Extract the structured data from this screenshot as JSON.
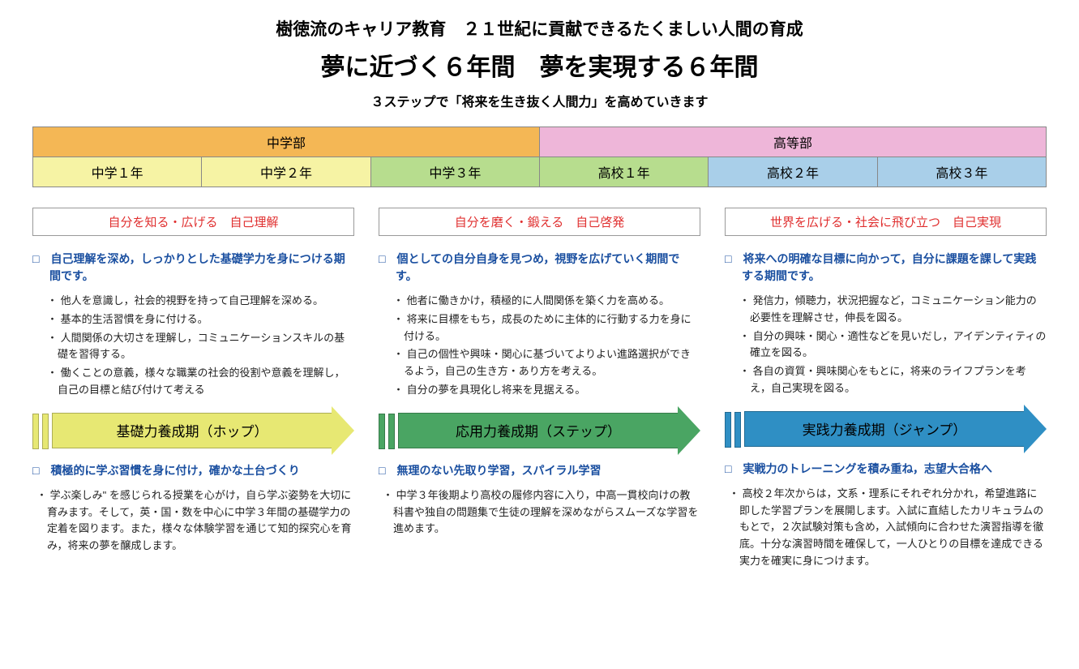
{
  "header": {
    "line1": "樹徳流のキャリア教育　２１世紀に貢献できるたくましい人間の育成",
    "line2": "夢に近づく６年間　夢を実現する６年間",
    "line3": "３ステップで「将来を生き抜く人間力」を高めていきます"
  },
  "table": {
    "divisions": [
      {
        "label": "中学部",
        "bg": "#f4b755"
      },
      {
        "label": "高等部",
        "bg": "#eeb6d9"
      }
    ],
    "years": [
      {
        "label": "中学１年",
        "bg": "#f6f3a4"
      },
      {
        "label": "中学２年",
        "bg": "#f6f3a4"
      },
      {
        "label": "中学３年",
        "bg": "#b7dd8e"
      },
      {
        "label": "高校１年",
        "bg": "#b7dd8e"
      },
      {
        "label": "高校２年",
        "bg": "#a9cfe9"
      },
      {
        "label": "高校３年",
        "bg": "#a9cfe9"
      }
    ]
  },
  "columns": [
    {
      "stage": "自分を知る・広げる　自己理解",
      "intro": "自己理解を深め，しっかりとした基礎学力を身につける期間です。",
      "bullets": [
        "他人を意識し，社会的視野を持って自己理解を深める。",
        "基本的生活習慣を身に付ける。",
        "人間関係の大切さを理解し，コミュニケーションスキルの基礎を習得する。",
        "働くことの意義，様々な職業の社会的役割や意義を理解し，自己の目標と結び付けて考える"
      ],
      "arrow_label": "基礎力養成期（ホップ）",
      "arrow_color": "#e7e873",
      "sub_title": "積極的に学ぶ習慣を身に付け，確かな土台づくり",
      "sub_body": "学ぶ楽しみ\" を感じられる授業を心がけ，自ら学ぶ姿勢を大切に育みます。そして，英・国・数を中心に中学３年間の基礎学力の定着を図ります。また，様々な体験学習を通じて知的探究心を育み，将来の夢を醸成します。"
    },
    {
      "stage": "自分を磨く・鍛える　自己啓発",
      "intro": "個としての自分自身を見つめ，視野を広げていく期間です。",
      "bullets": [
        "他者に働きかけ，積極的に人間関係を築く力を高める。",
        "将来に目標をもち，成長のために主体的に行動する力を身に付ける。",
        "自己の個性や興味・関心に基づいてよりよい進路選択ができるよう，自己の生き方・あり方を考える。",
        "自分の夢を具現化し将来を見据える。"
      ],
      "arrow_label": "応用力養成期（ステップ）",
      "arrow_color": "#4aa563",
      "sub_title": "無理のない先取り学習，スパイラル学習",
      "sub_body": "中学３年後期より高校の履修内容に入り，中高一貫校向けの教科書や独自の問題集で生徒の理解を深めながらスムーズな学習を進めます。"
    },
    {
      "stage": "世界を広げる・社会に飛び立つ　自己実現",
      "intro": "将来への明確な目標に向かって，自分に課題を課して実践する期間です。",
      "bullets": [
        "発信力，傾聴力，状況把握など，コミュニケーション能力の必要性を理解させ，伸長を図る。",
        "自分の興味・関心・適性などを見いだし，アイデンティティの確立を図る。",
        "各自の資質・興味関心をもとに，将来のライフプランを考え，自己実現を図る。"
      ],
      "arrow_label": "実践力養成期（ジャンプ）",
      "arrow_color": "#2f8fc4",
      "sub_title": "実戦力のトレーニングを積み重ね，志望大合格へ",
      "sub_body": "高校２年次からは，文系・理系にそれぞれ分かれ，希望進路に即した学習プランを展開します。入試に直結したカリキュラムのもとで，２次試験対策も含め，入試傾向に合わせた演習指導を徹底。十分な演習時間を確保して，一人ひとりの目標を達成できる実力を確実に身につけます。"
    }
  ]
}
